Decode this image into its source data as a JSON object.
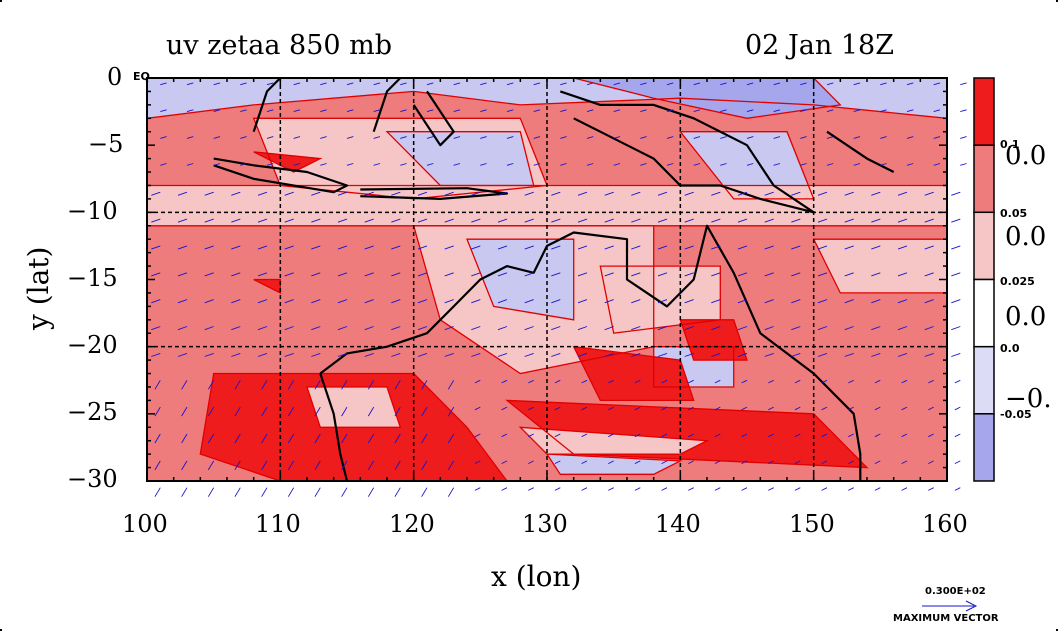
{
  "header": {
    "title_left": "uv zetaa 850 mb",
    "title_right": "02 Jan 18Z"
  },
  "axes": {
    "xlabel": "x (lon)",
    "ylabel": "y (lat)",
    "x_ticks": [
      "100",
      "110",
      "120",
      "130",
      "140",
      "150",
      "160"
    ],
    "y_ticks": [
      "0",
      "−5",
      "−10",
      "−15",
      "−20",
      "−25",
      "−30"
    ],
    "eq_label": "EQ"
  },
  "colorbar": {
    "small_labels": [
      "0.1",
      "0.05",
      "0.025",
      "0.0",
      "-0.05"
    ],
    "big_labels": [
      "0.0",
      "0.0",
      "0.0",
      "−0."
    ],
    "colors": [
      "#ee1c1c",
      "#ef7c7c",
      "#f6c6c6",
      "#ffffff",
      "#dcdcf6",
      "#a6a6ec"
    ]
  },
  "vector_key": {
    "value": "0.300E+02",
    "label": "MAXIMUM VECTOR"
  },
  "map_colors": {
    "strong_pos": "#ee1c1c",
    "mod_pos": "#ef7c7c",
    "weak_pos": "#f6c6c6",
    "neg": "#c8c8f0",
    "strong_neg": "#a6a6ec",
    "contour": "#e00000",
    "vector": "#1515d0",
    "coast": "#000000"
  }
}
